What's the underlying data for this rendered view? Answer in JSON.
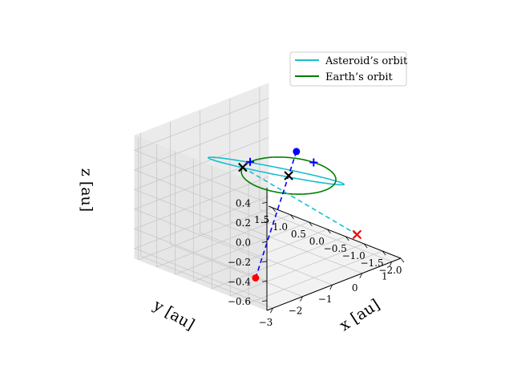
{
  "chart_data": {
    "type": "line",
    "projection": "3d",
    "title": "",
    "xlabel": "$x$ [au]",
    "ylabel": "$y$ [au]",
    "zlabel": "$z$ [au]",
    "xlabel_text": "x [au]",
    "ylabel_text": "y [au]",
    "zlabel_text": "z [au]",
    "xlim": [
      -3.2,
      1.3
    ],
    "ylim": [
      -2.0,
      1.6
    ],
    "zlim": [
      -0.7,
      0.55
    ],
    "xticks": [
      -3,
      -2,
      -1,
      0,
      1
    ],
    "xticklabels": [
      "−3",
      "−2",
      "−1",
      "0",
      "1"
    ],
    "yticks": [
      -2.0,
      -1.5,
      -1.0,
      -0.5,
      0.0,
      0.5,
      1.0,
      1.5
    ],
    "yticklabels": [
      "−2.0",
      "−1.5",
      "−1.0",
      "−0.5",
      "0.0",
      "0.5",
      "1.0",
      "1.5"
    ],
    "zticks": [
      -0.6,
      -0.4,
      -0.2,
      0.0,
      0.2,
      0.4
    ],
    "zticklabels": [
      "−0.6",
      "−0.4",
      "−0.2",
      "0.0",
      "0.2",
      "0.4"
    ],
    "grid": true,
    "legend_position": "top-right",
    "series": [
      {
        "name": "Asteroid's orbit",
        "label": "Asteroid’s orbit",
        "color": "#17becf",
        "orbit": {
          "a": 1.8,
          "e": 0.62,
          "inclination_deg": 12,
          "perihelion_longitude_deg": 25,
          "ascending_node_deg": 115
        }
      },
      {
        "name": "Earth's orbit",
        "label": "Earth’s orbit",
        "color": "#008000",
        "orbit": {
          "a": 1.0,
          "e": 0.0,
          "inclination_deg": 0,
          "perihelion_longitude_deg": 0,
          "ascending_node_deg": 0
        }
      }
    ],
    "nodes_line": {
      "color": "#17becf",
      "style": "dashed",
      "from": [
        -0.42,
        0.91,
        0.0
      ],
      "to": [
        -1.37,
        -2.97,
        0.0
      ]
    },
    "apsides_line": {
      "color": "#0000ff",
      "style": "dashed",
      "from": [
        0.62,
        0.29,
        0.13
      ],
      "to": [
        -2.63,
        -1.23,
        -0.55
      ]
    },
    "markers": [
      {
        "name": "sun",
        "symbol": "x",
        "color": "#000000",
        "position": [
          0.0,
          0.0,
          0.0
        ]
      },
      {
        "name": "ascending-node",
        "symbol": "x",
        "color": "#000000",
        "position": [
          -0.42,
          0.91,
          0.0
        ]
      },
      {
        "name": "descending-node",
        "symbol": "x",
        "color": "#ff0000",
        "position": [
          -1.37,
          -2.97,
          0.0
        ]
      },
      {
        "name": "perihelion",
        "symbol": "o",
        "color": "#0000ff",
        "position": [
          0.62,
          0.29,
          0.13
        ]
      },
      {
        "name": "aphelion",
        "symbol": "o",
        "color": "#ff0000",
        "position": [
          -2.63,
          -1.23,
          -0.55
        ]
      },
      {
        "name": "earth-position-1",
        "symbol": "+",
        "color": "#0000ff",
        "position": [
          -0.06,
          1.0,
          0.0
        ]
      },
      {
        "name": "earth-position-2",
        "symbol": "+",
        "color": "#0000ff",
        "position": [
          0.99,
          0.12,
          0.0
        ]
      }
    ]
  }
}
